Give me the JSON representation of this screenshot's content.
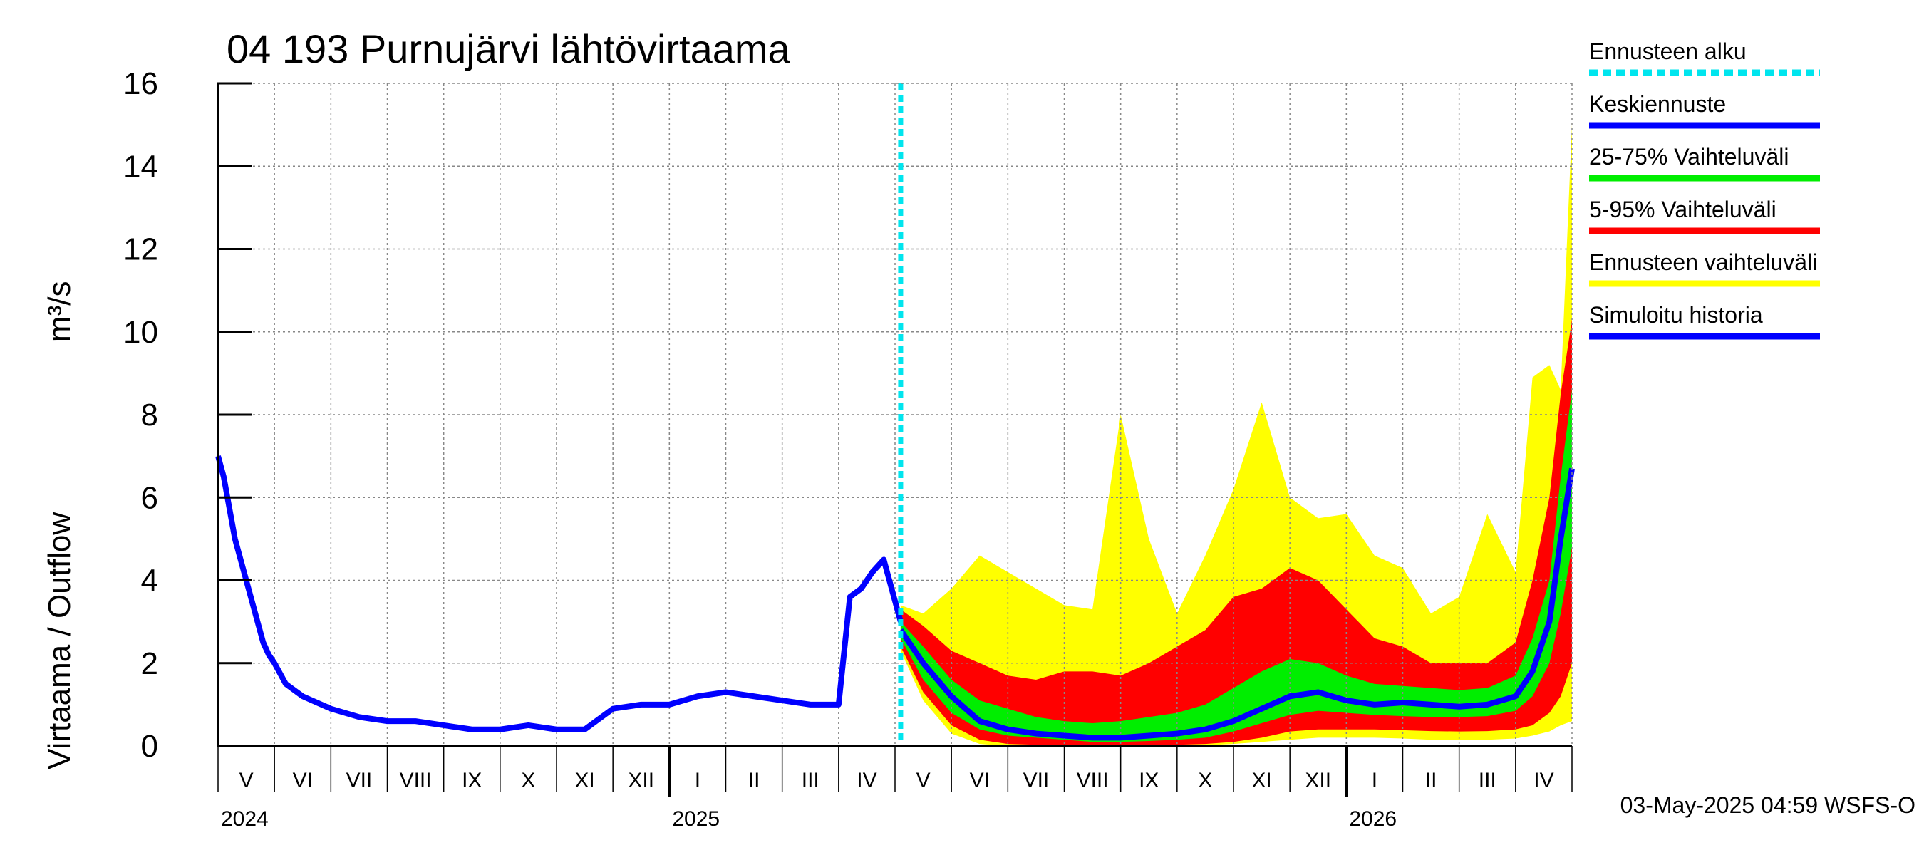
{
  "chart_data": {
    "type": "area",
    "title": "04 193 Purnujärvi lähtövirtaama",
    "ylabel": "Virtaama / Outflow",
    "yunit": "m³/s",
    "ylim": [
      0,
      16
    ],
    "yticks": [
      0,
      2,
      4,
      6,
      8,
      10,
      12,
      14,
      16
    ],
    "x_range_months": [
      0,
      24
    ],
    "forecast_start_month": 12.1,
    "months": [
      {
        "label": "V",
        "pos": 0.5
      },
      {
        "label": "VI",
        "pos": 1.5
      },
      {
        "label": "VII",
        "pos": 2.5
      },
      {
        "label": "VIII",
        "pos": 3.5
      },
      {
        "label": "IX",
        "pos": 4.5
      },
      {
        "label": "X",
        "pos": 5.5
      },
      {
        "label": "XI",
        "pos": 6.5
      },
      {
        "label": "XII",
        "pos": 7.5
      },
      {
        "label": "I",
        "pos": 8.5
      },
      {
        "label": "II",
        "pos": 9.5
      },
      {
        "label": "III",
        "pos": 10.5
      },
      {
        "label": "IV",
        "pos": 11.5
      },
      {
        "label": "V",
        "pos": 12.5
      },
      {
        "label": "VI",
        "pos": 13.5
      },
      {
        "label": "VII",
        "pos": 14.5
      },
      {
        "label": "VIII",
        "pos": 15.5
      },
      {
        "label": "IX",
        "pos": 16.5
      },
      {
        "label": "X",
        "pos": 17.5
      },
      {
        "label": "XI",
        "pos": 18.5
      },
      {
        "label": "XII",
        "pos": 19.5
      },
      {
        "label": "I",
        "pos": 20.5
      },
      {
        "label": "II",
        "pos": 21.5
      },
      {
        "label": "III",
        "pos": 22.5
      },
      {
        "label": "IV",
        "pos": 23.5
      }
    ],
    "years": [
      {
        "label": "2024",
        "pos": 0
      },
      {
        "label": "2025",
        "pos": 8
      },
      {
        "label": "2026",
        "pos": 20
      }
    ],
    "history": {
      "name": "Simuloitu historia",
      "x": [
        0,
        0.1,
        0.3,
        0.5,
        0.7,
        0.8,
        0.9,
        1.0,
        1.2,
        1.5,
        2.0,
        2.5,
        3.0,
        3.5,
        4.0,
        4.5,
        5.0,
        5.5,
        6.0,
        6.5,
        7.0,
        7.5,
        8.0,
        8.5,
        9.0,
        9.5,
        10.0,
        10.5,
        11.0,
        11.2,
        11.4,
        11.6,
        11.8,
        12.0,
        12.1
      ],
      "y": [
        7.0,
        6.5,
        5.0,
        4.0,
        3.0,
        2.5,
        2.2,
        2.0,
        1.5,
        1.2,
        0.9,
        0.7,
        0.6,
        0.6,
        0.5,
        0.4,
        0.4,
        0.5,
        0.4,
        0.4,
        0.9,
        1.0,
        1.0,
        1.2,
        1.3,
        1.2,
        1.1,
        1.0,
        1.0,
        3.6,
        3.8,
        4.2,
        4.5,
        3.5,
        3.0
      ]
    },
    "forecast": {
      "x": [
        12.1,
        12.5,
        13.0,
        13.5,
        14.0,
        14.5,
        15.0,
        15.5,
        16.0,
        16.5,
        17.0,
        17.5,
        18.0,
        18.5,
        19.0,
        19.5,
        20.0,
        20.5,
        21.0,
        21.5,
        22.0,
        22.5,
        23.0,
        23.3,
        23.6,
        23.8,
        24.0
      ],
      "median": [
        2.8,
        2.0,
        1.2,
        0.6,
        0.4,
        0.3,
        0.25,
        0.2,
        0.2,
        0.25,
        0.3,
        0.4,
        0.6,
        0.9,
        1.2,
        1.3,
        1.1,
        1.0,
        1.05,
        1.0,
        0.95,
        1.0,
        1.2,
        1.8,
        3.0,
        5.0,
        6.7
      ],
      "p25": [
        2.6,
        1.6,
        0.8,
        0.4,
        0.25,
        0.2,
        0.15,
        0.1,
        0.1,
        0.12,
        0.15,
        0.2,
        0.35,
        0.55,
        0.75,
        0.85,
        0.8,
        0.75,
        0.72,
        0.7,
        0.7,
        0.72,
        0.85,
        1.2,
        2.0,
        3.2,
        4.8
      ],
      "p75": [
        3.0,
        2.4,
        1.6,
        1.1,
        0.9,
        0.7,
        0.6,
        0.55,
        0.6,
        0.7,
        0.8,
        1.0,
        1.4,
        1.8,
        2.1,
        2.0,
        1.7,
        1.5,
        1.45,
        1.4,
        1.35,
        1.4,
        1.7,
        2.6,
        4.0,
        6.5,
        8.6
      ],
      "p5": [
        2.4,
        1.3,
        0.5,
        0.15,
        0.05,
        0.03,
        0.02,
        0.02,
        0.02,
        0.02,
        0.03,
        0.05,
        0.1,
        0.2,
        0.35,
        0.4,
        0.4,
        0.4,
        0.38,
        0.36,
        0.35,
        0.36,
        0.4,
        0.5,
        0.8,
        1.2,
        2.0
      ],
      "p95": [
        3.3,
        2.9,
        2.3,
        2.0,
        1.7,
        1.6,
        1.8,
        1.8,
        1.7,
        2.0,
        2.4,
        2.8,
        3.6,
        3.8,
        4.3,
        4.0,
        3.3,
        2.6,
        2.4,
        2.0,
        2.0,
        2.0,
        2.5,
        4.0,
        6.0,
        8.5,
        10.3
      ],
      "min": [
        2.3,
        1.1,
        0.3,
        0.05,
        0.0,
        0.0,
        0.0,
        0.0,
        0.0,
        0.0,
        0.0,
        0.02,
        0.05,
        0.1,
        0.15,
        0.2,
        0.2,
        0.2,
        0.18,
        0.15,
        0.15,
        0.15,
        0.18,
        0.25,
        0.35,
        0.5,
        0.6
      ],
      "max": [
        3.4,
        3.2,
        3.8,
        4.6,
        4.2,
        3.8,
        3.4,
        3.3,
        8.0,
        5.0,
        3.2,
        4.6,
        6.2,
        8.3,
        6.0,
        5.5,
        5.6,
        4.6,
        4.3,
        3.2,
        3.6,
        5.6,
        4.2,
        8.9,
        9.2,
        8.6,
        15.0
      ]
    }
  },
  "legend": {
    "items": [
      {
        "label": "Ennusteen alku",
        "color": "#00e5ee",
        "style": "dashed"
      },
      {
        "label": "Keskiennuste",
        "color": "#0000ff",
        "style": "solid"
      },
      {
        "label": "25-75% Vaihteluväli",
        "color": "#00ee00",
        "style": "solid"
      },
      {
        "label": "5-95% Vaihteluväli",
        "color": "#ff0000",
        "style": "solid"
      },
      {
        "label": "Ennusteen vaihteluväli",
        "color": "#ffff00",
        "style": "solid"
      },
      {
        "label": "Simuloitu historia",
        "color": "#0000ff",
        "style": "solid"
      }
    ]
  },
  "footer": "03-May-2025 04:59 WSFS-O",
  "colors": {
    "history": "#0000ff",
    "median": "#0000ff",
    "iqr": "#00ee00",
    "p5_95": "#ff0000",
    "range": "#ffff00",
    "forecast_start": "#00e5ee"
  }
}
